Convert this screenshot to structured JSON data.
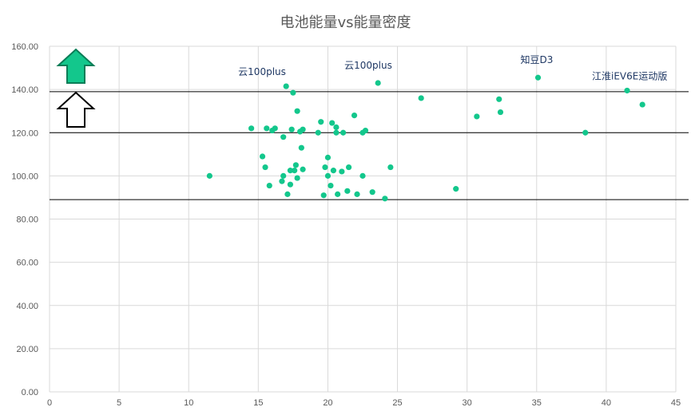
{
  "chart_data": {
    "type": "scatter",
    "title": "电池能量vs能量密度",
    "xlabel": "",
    "ylabel": "",
    "xlim": [
      0,
      45
    ],
    "ylim": [
      0,
      160
    ],
    "x_ticks": [
      "0",
      "5",
      "10",
      "15",
      "20",
      "25",
      "30",
      "35",
      "40",
      "45"
    ],
    "y_ticks": [
      "0.00",
      "20.00",
      "40.00",
      "60.00",
      "80.00",
      "100.00",
      "120.00",
      "140.00",
      "160.00"
    ],
    "grid": true,
    "marker_color": "#13c78c",
    "reference_lines": [
      139,
      120,
      89
    ],
    "points": [
      [
        11.5,
        100
      ],
      [
        14.5,
        122
      ],
      [
        15.3,
        109
      ],
      [
        15.5,
        104
      ],
      [
        15.6,
        122
      ],
      [
        15.8,
        95.5
      ],
      [
        16.0,
        121
      ],
      [
        16.2,
        122
      ],
      [
        16.7,
        97.5
      ],
      [
        16.8,
        100
      ],
      [
        16.8,
        118
      ],
      [
        17.0,
        141.5
      ],
      [
        17.1,
        91.5
      ],
      [
        17.3,
        102.5
      ],
      [
        17.3,
        96
      ],
      [
        17.4,
        121.5
      ],
      [
        17.5,
        138.5
      ],
      [
        17.6,
        102.5
      ],
      [
        17.7,
        105
      ],
      [
        17.8,
        99
      ],
      [
        17.8,
        130
      ],
      [
        18.0,
        120.5
      ],
      [
        18.1,
        113
      ],
      [
        18.2,
        121.5
      ],
      [
        18.2,
        103
      ],
      [
        19.3,
        120
      ],
      [
        19.5,
        125
      ],
      [
        19.7,
        91
      ],
      [
        19.8,
        104
      ],
      [
        20.0,
        108.5
      ],
      [
        20.0,
        100
      ],
      [
        20.2,
        95.5
      ],
      [
        20.3,
        124.5
      ],
      [
        20.4,
        102.5
      ],
      [
        20.6,
        122.5
      ],
      [
        20.6,
        120
      ],
      [
        20.7,
        91.5
      ],
      [
        21.0,
        102
      ],
      [
        21.1,
        120
      ],
      [
        21.4,
        93
      ],
      [
        21.5,
        104
      ],
      [
        21.9,
        128
      ],
      [
        22.1,
        91.5
      ],
      [
        22.5,
        100
      ],
      [
        22.5,
        120
      ],
      [
        22.7,
        121
      ],
      [
        23.2,
        92.5
      ],
      [
        23.6,
        143
      ],
      [
        24.1,
        89.5
      ],
      [
        24.5,
        104
      ],
      [
        26.7,
        136
      ],
      [
        29.2,
        94
      ],
      [
        30.7,
        127.5
      ],
      [
        32.3,
        135.5
      ],
      [
        32.4,
        129.5
      ],
      [
        35.1,
        145.5
      ],
      [
        38.5,
        120
      ],
      [
        41.5,
        139.5
      ],
      [
        42.6,
        133
      ]
    ],
    "annotations": [
      {
        "text": "云100plus",
        "x": 17.0,
        "y": 141.5
      },
      {
        "text": "云100plus",
        "x": 23.6,
        "y": 143
      },
      {
        "text": "知豆D3",
        "x": 35.1,
        "y": 145.5
      },
      {
        "text": "江淮iEV6E运动版",
        "x": 41.5,
        "y": 139.5
      }
    ]
  },
  "legend_icons": {
    "filled_arrow": "up-arrow-filled-icon",
    "outline_arrow": "up-arrow-outline-icon",
    "filled_color": "#13c78c",
    "outline_color": "#000000"
  }
}
